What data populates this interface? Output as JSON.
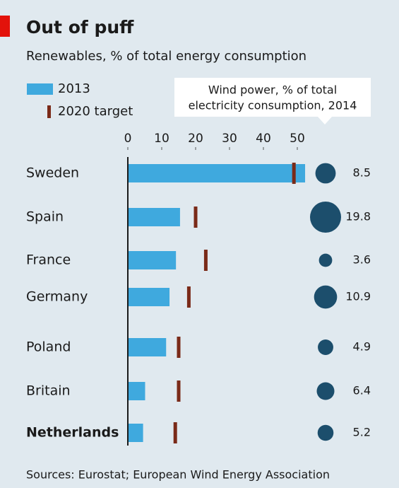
{
  "chart_data": {
    "type": "bar",
    "title": "Out of puff",
    "subtitle": "Renewables, % of total energy consumption",
    "source": "Sources: Eurostat; European Wind Energy Association",
    "categories": [
      "Sweden",
      "Spain",
      "France",
      "Germany",
      "Poland",
      "Britain",
      "Netherlands"
    ],
    "highlight": [
      6
    ],
    "series": [
      {
        "name": "2013",
        "color": "#3fa9de",
        "values": [
          52.3,
          15.4,
          14.2,
          12.3,
          11.3,
          5.1,
          4.5
        ]
      },
      {
        "name": "2020 target",
        "color": "#7a2a18",
        "style": "marker",
        "values": [
          49,
          20,
          23,
          18,
          15,
          15,
          14
        ]
      }
    ],
    "bubbles": {
      "title": [
        "Wind power, % of total",
        "electricity consumption, 2014"
      ],
      "color": "#1c4e6c",
      "values": [
        8.5,
        19.8,
        3.6,
        10.9,
        4.9,
        6.4,
        5.2
      ]
    },
    "xlim": [
      0,
      52.5
    ],
    "xticks": [
      0,
      10,
      20,
      30,
      40,
      50
    ]
  }
}
